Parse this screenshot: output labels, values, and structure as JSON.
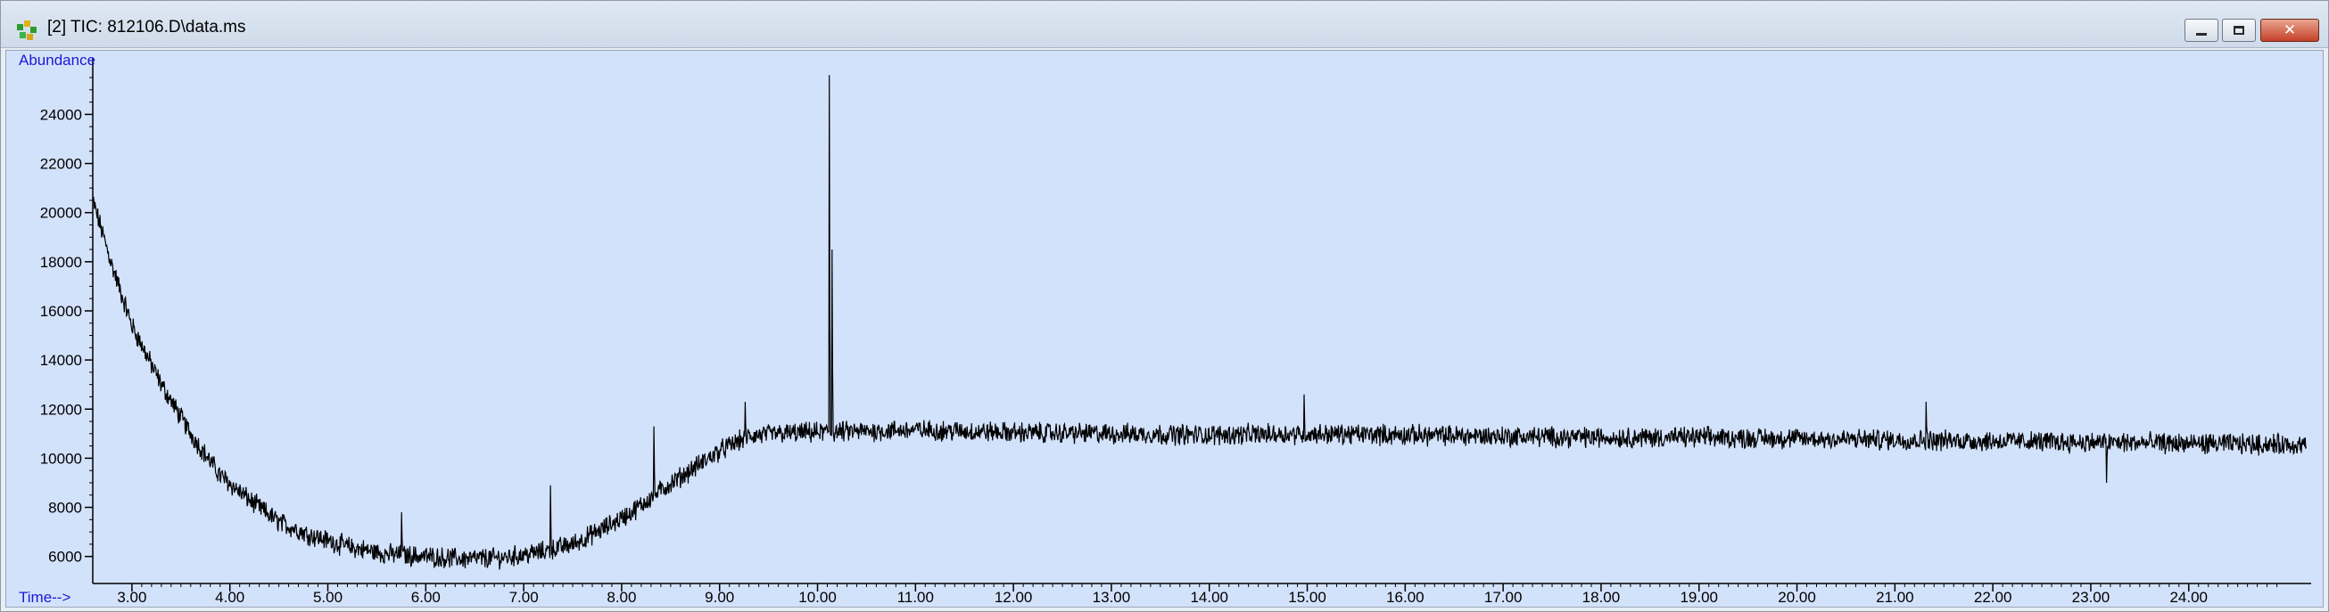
{
  "window": {
    "title": "[2] TIC: 812106.D\\data.ms",
    "controls": {
      "minimize": "minimize",
      "restore": "restore",
      "close": "close"
    }
  },
  "icons": {
    "app": "chromatogram-app-icon"
  },
  "chart_data": {
    "type": "line",
    "title": "",
    "ylabel": "Abundance",
    "xlabel": "Time-->",
    "xlim": [
      2.6,
      25.25
    ],
    "ylim": [
      4900,
      26300
    ],
    "grid": false,
    "legend": "none",
    "x_ticks": [
      3,
      4,
      5,
      6,
      7,
      8,
      9,
      10,
      11,
      12,
      13,
      14,
      15,
      16,
      17,
      18,
      19,
      20,
      21,
      22,
      23,
      24
    ],
    "x_tick_labels": [
      "3.00",
      "4.00",
      "5.00",
      "6.00",
      "7.00",
      "8.00",
      "9.00",
      "10.00",
      "11.00",
      "12.00",
      "13.00",
      "14.00",
      "15.00",
      "16.00",
      "17.00",
      "18.00",
      "19.00",
      "20.00",
      "21.00",
      "22.00",
      "23.00",
      "24.00"
    ],
    "y_ticks": [
      6000,
      8000,
      10000,
      12000,
      14000,
      16000,
      18000,
      20000,
      22000,
      24000
    ],
    "y_tick_labels": [
      "6000",
      "8000",
      "10000",
      "12000",
      "14000",
      "16000",
      "18000",
      "20000",
      "22000",
      "24000"
    ],
    "series": [
      {
        "line_color": "#000000",
        "baseline_points": {
          "x": [
            2.6,
            2.8,
            3.0,
            3.3,
            3.6,
            3.9,
            4.2,
            4.5,
            4.8,
            5.2,
            5.6,
            6.0,
            6.4,
            6.8,
            7.2,
            7.5,
            7.8,
            8.1,
            8.4,
            8.7,
            9.0,
            9.3,
            9.6,
            10.0,
            10.5,
            11.0,
            12.0,
            13.0,
            14.0,
            15.0,
            16.0,
            17.0,
            18.0,
            19.0,
            20.0,
            21.0,
            22.0,
            23.0,
            24.0,
            25.2
          ],
          "y": [
            20500,
            17800,
            15400,
            13000,
            11000,
            9300,
            8300,
            7400,
            6900,
            6400,
            6100,
            6000,
            5900,
            5950,
            6200,
            6500,
            7100,
            7800,
            8700,
            9500,
            10300,
            10900,
            11000,
            11050,
            11100,
            11150,
            11050,
            11000,
            10950,
            11000,
            10950,
            10900,
            10850,
            10850,
            10800,
            10750,
            10700,
            10650,
            10600,
            10550
          ]
        },
        "noise_amplitude": 350,
        "spikes": [
          {
            "x": 5.75,
            "y": 7800
          },
          {
            "x": 7.27,
            "y": 8900
          },
          {
            "x": 8.33,
            "y": 11300
          },
          {
            "x": 9.26,
            "y": 12300
          },
          {
            "x": 10.12,
            "y": 25600
          },
          {
            "x": 10.15,
            "y": 18500
          },
          {
            "x": 14.97,
            "y": 12600
          },
          {
            "x": 21.32,
            "y": 12300
          },
          {
            "x": 23.16,
            "y": 9000
          }
        ]
      }
    ]
  }
}
